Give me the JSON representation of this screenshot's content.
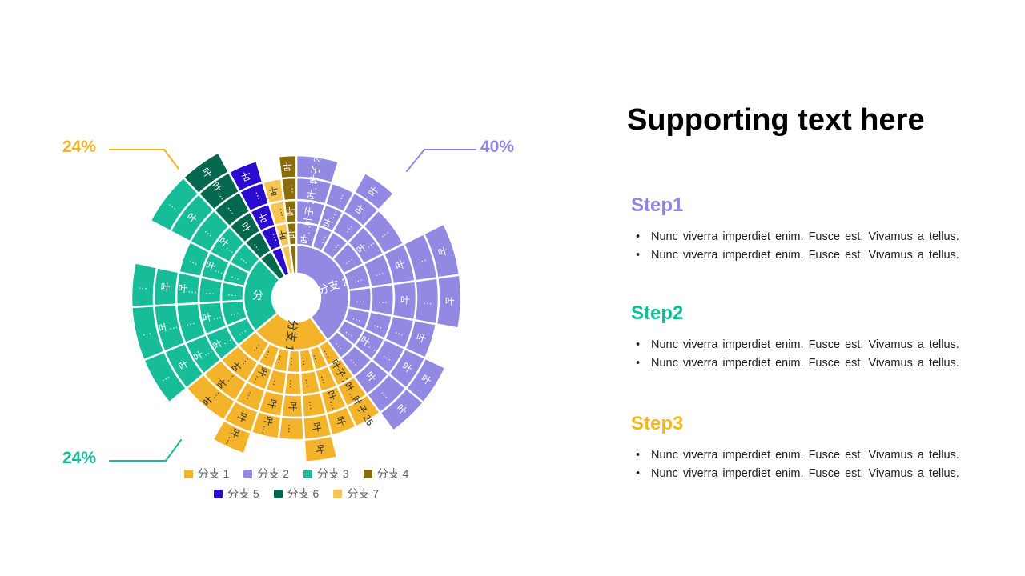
{
  "page": {
    "background": "#ffffff"
  },
  "chart_data": {
    "type": "sunburst",
    "center_label": "",
    "legend_rows": [
      [
        "0",
        "1",
        "2",
        "3"
      ],
      [
        "4",
        "5",
        "6"
      ]
    ],
    "legend": [
      {
        "label": "分支 1",
        "color": "#F3B32A"
      },
      {
        "label": "分支 2",
        "color": "#9289E3"
      },
      {
        "label": "分支 3",
        "color": "#16BD98"
      },
      {
        "label": "分支 4",
        "color": "#8A6D08"
      },
      {
        "label": "分支 5",
        "color": "#2A0BCF"
      },
      {
        "label": "分支 6",
        "color": "#03684E"
      },
      {
        "label": "分支 7",
        "color": "#F6C553"
      }
    ],
    "callouts": [
      {
        "text": "24%",
        "color": "#F2B329",
        "pos": "top-left",
        "refers_to": "分支 1"
      },
      {
        "text": "40%",
        "color": "#8F84E8",
        "pos": "top-right",
        "refers_to": "分支 2"
      },
      {
        "text": "24%",
        "color": "#12BD96",
        "pos": "bottom-left",
        "refers_to": "分支 3"
      }
    ],
    "branches": [
      {
        "name": "分支 2",
        "share_pct": 40,
        "start": 0,
        "end": 144,
        "color": "#9289E3",
        "text_color": "#ffffff",
        "inner_label": "分支 2",
        "columns": [
          {
            "f0": 0.0,
            "f1": 0.12,
            "cells": [
              {
                "r": 2,
                "t": "叶…"
              },
              {
                "r": 3,
                "t": "叶子 2"
              },
              {
                "r": 4,
                "t": "叶…"
              },
              {
                "r": 5,
                "t": "叶子 21"
              }
            ]
          },
          {
            "f0": 0.12,
            "f1": 0.2,
            "cells": [
              {
                "r": 2,
                "t": "…"
              },
              {
                "r": 3,
                "t": "叶…"
              },
              {
                "r": 4,
                "t": "…"
              }
            ]
          },
          {
            "f0": 0.2,
            "f1": 0.3,
            "cells": [
              {
                "r": 2,
                "t": "…"
              },
              {
                "r": 3,
                "t": "…"
              },
              {
                "r": 4,
                "t": "叶"
              },
              {
                "r": 5,
                "t": "叶"
              }
            ]
          },
          {
            "f0": 0.3,
            "f1": 0.44,
            "cells": [
              {
                "r": 2,
                "t": "…"
              },
              {
                "r": 3,
                "t": "叶…"
              },
              {
                "r": 4,
                "t": "…"
              }
            ]
          },
          {
            "f0": 0.44,
            "f1": 0.57,
            "cells": [
              {
                "r": 2,
                "t": "…"
              },
              {
                "r": 3,
                "t": "…"
              },
              {
                "r": 4,
                "t": "叶"
              },
              {
                "r": 5,
                "t": "…"
              },
              {
                "r": 6,
                "t": "叶"
              }
            ]
          },
          {
            "f0": 0.57,
            "f1": 0.7,
            "cells": [
              {
                "r": 2,
                "t": "…"
              },
              {
                "r": 3,
                "t": "…"
              },
              {
                "r": 4,
                "t": "叶"
              },
              {
                "r": 5,
                "t": "…"
              },
              {
                "r": 6,
                "t": "叶"
              }
            ]
          },
          {
            "f0": 0.7,
            "f1": 0.8,
            "cells": [
              {
                "r": 2,
                "t": "…"
              },
              {
                "r": 3,
                "t": "…"
              },
              {
                "r": 4,
                "t": "…"
              },
              {
                "r": 5,
                "t": "叶"
              }
            ]
          },
          {
            "f0": 0.8,
            "f1": 0.9,
            "cells": [
              {
                "r": 2,
                "t": "…"
              },
              {
                "r": 3,
                "t": "叶…"
              },
              {
                "r": 4,
                "t": "…"
              },
              {
                "r": 5,
                "t": "叶"
              },
              {
                "r": 6,
                "t": "叶"
              }
            ]
          },
          {
            "f0": 0.9,
            "f1": 1.0,
            "cells": [
              {
                "r": 2,
                "t": "…"
              },
              {
                "r": 3,
                "t": "…"
              },
              {
                "r": 4,
                "t": "叶"
              },
              {
                "r": 5,
                "t": "…"
              },
              {
                "r": 6,
                "t": "叶"
              }
            ]
          }
        ]
      },
      {
        "name": "分支 1",
        "share_pct": 24,
        "start": 144,
        "end": 230.4,
        "color": "#F3B32A",
        "text_color": "#2e2e2e",
        "inner_label": "分支 1",
        "columns": [
          {
            "f0": 0.0,
            "f1": 0.13,
            "cells": [
              {
                "r": 2,
                "t": "…"
              },
              {
                "r": 3,
                "t": "叶子 2"
              },
              {
                "r": 4,
                "t": "叶…"
              },
              {
                "r": 5,
                "t": "叶子 25"
              }
            ]
          },
          {
            "f0": 0.13,
            "f1": 0.25,
            "cells": [
              {
                "r": 2,
                "t": "…"
              },
              {
                "r": 3,
                "t": "…"
              },
              {
                "r": 4,
                "t": "叶…"
              },
              {
                "r": 5,
                "t": "叶"
              }
            ]
          },
          {
            "f0": 0.25,
            "f1": 0.38,
            "cells": [
              {
                "r": 2,
                "t": "…"
              },
              {
                "r": 3,
                "t": "…"
              },
              {
                "r": 4,
                "t": "…"
              },
              {
                "r": 5,
                "t": "叶"
              },
              {
                "r": 6,
                "t": "叶"
              }
            ]
          },
          {
            "f0": 0.38,
            "f1": 0.5,
            "cells": [
              {
                "r": 2,
                "t": "…"
              },
              {
                "r": 3,
                "t": "…"
              },
              {
                "r": 4,
                "t": "叶"
              },
              {
                "r": 5,
                "t": "…"
              }
            ]
          },
          {
            "f0": 0.5,
            "f1": 0.63,
            "cells": [
              {
                "r": 2,
                "t": "…"
              },
              {
                "r": 3,
                "t": "…"
              },
              {
                "r": 4,
                "t": "叶"
              },
              {
                "r": 5,
                "t": "叶…"
              }
            ]
          },
          {
            "f0": 0.63,
            "f1": 0.77,
            "cells": [
              {
                "r": 2,
                "t": "…"
              },
              {
                "r": 3,
                "t": "叶…"
              },
              {
                "r": 4,
                "t": "…"
              },
              {
                "r": 5,
                "t": "叶"
              },
              {
                "r": 6,
                "t": "叶…"
              }
            ]
          },
          {
            "f0": 0.77,
            "f1": 1.0,
            "cells": [
              {
                "r": 2,
                "t": "…"
              },
              {
                "r": 3,
                "t": "叶…"
              },
              {
                "r": 4,
                "t": "叶…"
              },
              {
                "r": 5,
                "t": "叶…"
              }
            ]
          }
        ]
      },
      {
        "name": "分支 3",
        "share_pct": 24,
        "start": 230.4,
        "end": 316.8,
        "color": "#16BD98",
        "text_color": "#ffffff",
        "inner_label": "分",
        "columns": [
          {
            "f0": 0.0,
            "f1": 0.2,
            "cells": [
              {
                "r": 2,
                "t": "…"
              },
              {
                "r": 3,
                "t": "叶…"
              },
              {
                "r": 4,
                "t": "叶…"
              },
              {
                "r": 5,
                "t": "叶"
              },
              {
                "r": 6,
                "t": "…"
              }
            ]
          },
          {
            "f0": 0.2,
            "f1": 0.42,
            "cells": [
              {
                "r": 2,
                "t": "…"
              },
              {
                "r": 3,
                "t": "叶…"
              },
              {
                "r": 4,
                "t": "…"
              },
              {
                "r": 5,
                "t": "叶…"
              },
              {
                "r": 6,
                "t": "…"
              }
            ]
          },
          {
            "f0": 0.42,
            "f1": 0.6,
            "cells": [
              {
                "r": 2,
                "t": "…"
              },
              {
                "r": 3,
                "t": "…"
              },
              {
                "r": 4,
                "t": "叶…"
              },
              {
                "r": 5,
                "t": "叶"
              },
              {
                "r": 6,
                "t": "…"
              }
            ]
          },
          {
            "f0": 0.6,
            "f1": 0.78,
            "cells": [
              {
                "r": 2,
                "t": "…"
              },
              {
                "r": 3,
                "t": "叶…"
              },
              {
                "r": 4,
                "t": "…"
              }
            ]
          },
          {
            "f0": 0.78,
            "f1": 1.0,
            "cells": [
              {
                "r": 2,
                "t": "…"
              },
              {
                "r": 3,
                "t": "叶…"
              },
              {
                "r": 4,
                "t": "…"
              },
              {
                "r": 5,
                "t": "叶"
              },
              {
                "r": 6,
                "t": "…"
              }
            ]
          }
        ]
      },
      {
        "name": "分支 6",
        "share_pct": 4.2,
        "start": 316.8,
        "end": 331.8,
        "color": "#03684E",
        "text_color": "#ffffff",
        "inner_label": "",
        "columns": [
          {
            "f0": 0.0,
            "f1": 1.0,
            "cells": [
              {
                "r": 2,
                "t": "…"
              },
              {
                "r": 3,
                "t": "叶"
              },
              {
                "r": 4,
                "t": "…"
              },
              {
                "r": 5,
                "t": "叶…"
              },
              {
                "r": 6,
                "t": "叶"
              }
            ]
          }
        ]
      },
      {
        "name": "分支 5",
        "share_pct": 3.3,
        "start": 331.8,
        "end": 343.8,
        "color": "#2A0BCF",
        "text_color": "#ffffff",
        "inner_label": "",
        "columns": [
          {
            "f0": 0.0,
            "f1": 1.0,
            "cells": [
              {
                "r": 2,
                "t": "…"
              },
              {
                "r": 3,
                "t": "叶"
              },
              {
                "r": 4,
                "t": "…"
              },
              {
                "r": 5,
                "t": "叶"
              }
            ]
          }
        ]
      },
      {
        "name": "分支 7",
        "share_pct": 2.5,
        "start": 343.8,
        "end": 352.8,
        "color": "#F6C553",
        "text_color": "#2e2e2e",
        "inner_label": "",
        "columns": [
          {
            "f0": 0.0,
            "f1": 1.0,
            "cells": [
              {
                "r": 2,
                "t": "叶"
              },
              {
                "r": 3,
                "t": "…"
              },
              {
                "r": 4,
                "t": "叶"
              }
            ]
          }
        ]
      },
      {
        "name": "分支 4",
        "share_pct": 2.0,
        "start": 352.8,
        "end": 360,
        "color": "#8A6D08",
        "text_color": "#ffffff",
        "inner_label": "",
        "columns": [
          {
            "f0": 0.0,
            "f1": 1.0,
            "cells": [
              {
                "r": 2,
                "t": "叶"
              },
              {
                "r": 3,
                "t": "叶"
              },
              {
                "r": 4,
                "t": "…"
              },
              {
                "r": 5,
                "t": "叶"
              }
            ]
          }
        ]
      }
    ]
  },
  "right_panel": {
    "title": "Supporting text here",
    "steps": [
      {
        "label": "Step1",
        "color": "#8F84E8",
        "bullets": [
          "Nunc viverra imperdiet enim. Fusce est. Vivamus a tellus.",
          "Nunc viverra imperdiet enim. Fusce est. Vivamus a tellus."
        ]
      },
      {
        "label": "Step2",
        "color": "#12BD96",
        "bullets": [
          "Nunc viverra imperdiet enim. Fusce est. Vivamus a tellus.",
          "Nunc viverra imperdiet enim. Fusce est. Vivamus a tellus."
        ]
      },
      {
        "label": "Step3",
        "color": "#F5B71F",
        "bullets": [
          "Nunc viverra imperdiet enim. Fusce est. Vivamus a tellus.",
          "Nunc viverra imperdiet enim. Fusce est. Vivamus a tellus."
        ]
      }
    ]
  }
}
